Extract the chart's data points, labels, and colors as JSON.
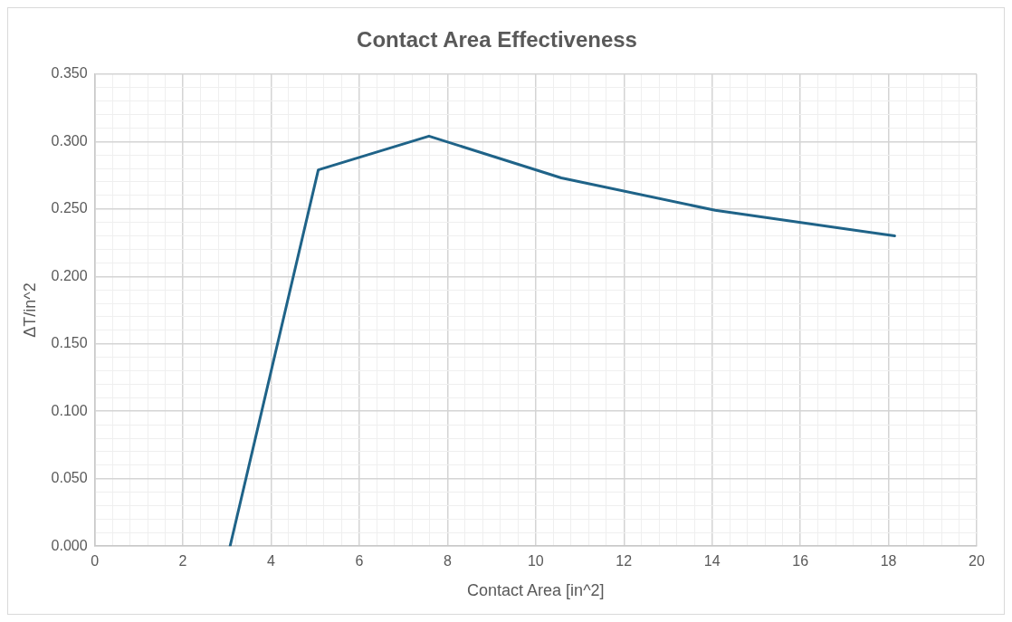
{
  "chart_data": {
    "type": "line",
    "title": "Contact Area Effectiveness",
    "xlabel": "Contact Area [in^2]",
    "ylabel": "ΔT/in^2",
    "x": [
      3.07,
      5.07,
      7.58,
      10.58,
      14.07,
      18.14
    ],
    "series": [
      {
        "color": "#1f6388",
        "values": [
          0,
          0.279,
          0.304,
          0.273,
          0.249,
          0.23
        ]
      }
    ],
    "xlim": [
      0,
      20
    ],
    "ylim": [
      0,
      0.35
    ],
    "xticks": [
      0,
      {
        "value": 0.4,
        "label": null
      },
      {
        "value": 0.8,
        "label": null
      },
      {
        "value": 1.2,
        "label": null
      },
      {
        "value": 1.6,
        "label": null
      },
      2,
      {
        "value": 2.4,
        "label": null
      },
      {
        "value": 2.8,
        "label": null
      },
      {
        "value": 3.2,
        "label": null
      },
      {
        "value": 3.6,
        "label": null
      },
      4,
      {
        "value": 4.4,
        "label": null
      },
      {
        "value": 4.8,
        "label": null
      },
      {
        "value": 5.2,
        "label": null
      },
      {
        "value": 5.6,
        "label": null
      },
      6,
      {
        "value": 6.4,
        "label": null
      },
      {
        "value": 6.8,
        "label": null
      },
      {
        "value": 7.2,
        "label": null
      },
      {
        "value": 7.6,
        "label": null
      },
      8,
      {
        "value": 8.4,
        "label": null
      },
      {
        "value": 8.8,
        "label": null
      },
      {
        "value": 9.2,
        "label": null
      },
      {
        "value": 9.6,
        "label": null
      },
      10,
      {
        "value": 10.4,
        "label": null
      },
      {
        "value": 10.8,
        "label": null
      },
      {
        "value": 11.2,
        "label": null
      },
      {
        "value": 11.6,
        "label": null
      },
      12,
      {
        "value": 12.4,
        "label": null
      },
      {
        "value": 12.8,
        "label": null
      },
      {
        "value": 13.2,
        "label": null
      },
      {
        "value": 13.6,
        "label": null
      },
      14,
      {
        "value": 14.4,
        "label": null
      },
      {
        "value": 14.8,
        "label": null
      },
      {
        "value": 15.2,
        "label": null
      },
      {
        "value": 15.6,
        "label": null
      },
      16,
      {
        "value": 16.4,
        "label": null
      },
      {
        "value": 16.8,
        "label": null
      },
      {
        "value": 17.2,
        "label": null
      },
      {
        "value": 17.6,
        "label": null
      },
      18,
      {
        "value": 18.4,
        "label": null
      },
      {
        "value": 18.8,
        "label": null
      },
      {
        "value": 19.2,
        "label": null
      },
      {
        "value": 19.6,
        "label": null
      },
      20
    ],
    "yticks": [
      {
        "value": 0,
        "label": "0.000"
      },
      {
        "value": 0.01,
        "label": null
      },
      {
        "value": 0.02,
        "label": null
      },
      {
        "value": 0.03,
        "label": null
      },
      {
        "value": 0.04,
        "label": null
      },
      {
        "value": 0.05,
        "label": "0.050"
      },
      {
        "value": 0.06,
        "label": null
      },
      {
        "value": 0.07,
        "label": null
      },
      {
        "value": 0.08,
        "label": null
      },
      {
        "value": 0.09,
        "label": null
      },
      {
        "value": 0.1,
        "label": "0.100"
      },
      {
        "value": 0.11,
        "label": null
      },
      {
        "value": 0.12,
        "label": null
      },
      {
        "value": 0.13,
        "label": null
      },
      {
        "value": 0.14,
        "label": null
      },
      {
        "value": 0.15,
        "label": "0.150"
      },
      {
        "value": 0.16,
        "label": null
      },
      {
        "value": 0.17,
        "label": null
      },
      {
        "value": 0.18,
        "label": null
      },
      {
        "value": 0.19,
        "label": null
      },
      {
        "value": 0.2,
        "label": "0.200"
      },
      {
        "value": 0.21,
        "label": null
      },
      {
        "value": 0.22,
        "label": null
      },
      {
        "value": 0.23,
        "label": null
      },
      {
        "value": 0.24,
        "label": null
      },
      {
        "value": 0.25,
        "label": "0.250"
      },
      {
        "value": 0.26,
        "label": null
      },
      {
        "value": 0.27,
        "label": null
      },
      {
        "value": 0.28,
        "label": null
      },
      {
        "value": 0.29,
        "label": null
      },
      {
        "value": 0.3,
        "label": "0.300"
      },
      {
        "value": 0.31,
        "label": null
      },
      {
        "value": 0.32,
        "label": null
      },
      {
        "value": 0.33,
        "label": null
      },
      {
        "value": 0.34,
        "label": null
      },
      {
        "value": 0.35,
        "label": "0.350"
      }
    ],
    "grid": true,
    "legend": false,
    "marker": "none",
    "line_style": "solid"
  }
}
